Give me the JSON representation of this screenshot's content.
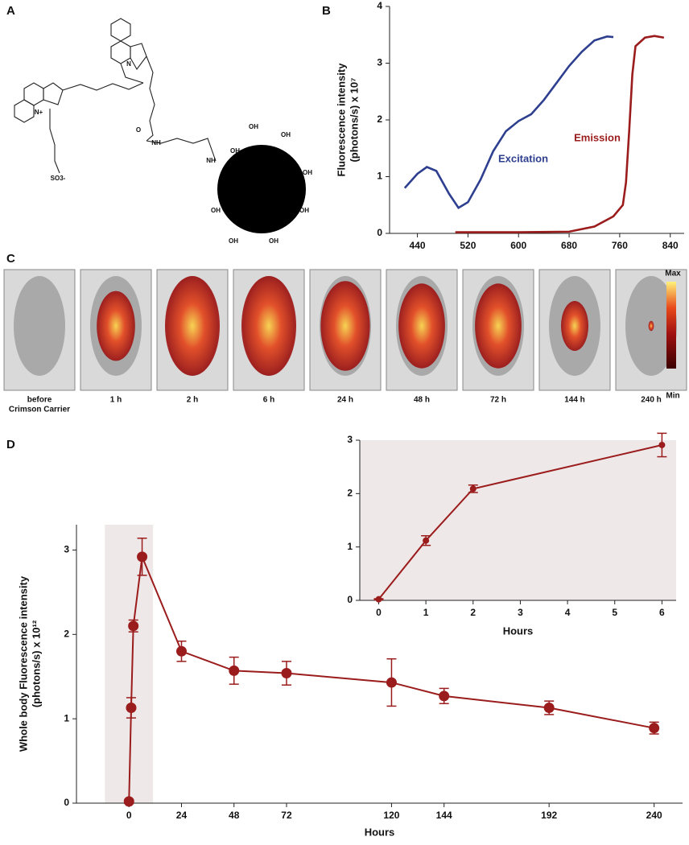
{
  "panel_labels": [
    "A",
    "B",
    "C",
    "D"
  ],
  "structure": {
    "atoms": [
      "N+",
      "N",
      "SO3-",
      "O",
      "NH",
      "NH",
      "OH",
      "OH",
      "OH",
      "OH",
      "OH",
      "OH",
      "OH",
      "OH"
    ]
  },
  "imaging": {
    "labels": [
      [
        "before",
        "Crimson Carrier"
      ],
      [
        "1 h"
      ],
      [
        "2 h"
      ],
      [
        "6 h"
      ],
      [
        "24 h"
      ],
      [
        "48 h"
      ],
      [
        "72 h"
      ],
      [
        "144  h"
      ],
      [
        "240 h"
      ]
    ],
    "colorbar": {
      "max": "Max",
      "min": "Min"
    }
  },
  "chart_data": [
    {
      "type": "line",
      "ylabel": [
        "Fluorescence intensity",
        "(photons/s) x 10⁷"
      ],
      "xlim": [
        396,
        862
      ],
      "ylim": [
        0,
        4
      ],
      "xticks": [
        440,
        520,
        600,
        680,
        760,
        840
      ],
      "yticks": [
        0,
        1,
        2,
        3,
        4
      ],
      "series": [
        {
          "name": "Excitation",
          "color": "#2e3f8f",
          "x": [
            420,
            440,
            455,
            470,
            490,
            505,
            520,
            540,
            560,
            580,
            600,
            620,
            640,
            660,
            680,
            700,
            720,
            740,
            750
          ],
          "values": [
            0.8,
            1.05,
            1.17,
            1.1,
            0.7,
            0.45,
            0.55,
            0.95,
            1.45,
            1.8,
            1.98,
            2.1,
            2.35,
            2.65,
            2.95,
            3.2,
            3.4,
            3.47,
            3.46
          ]
        },
        {
          "name": "Emission",
          "color": "#9b1c1c",
          "x": [
            500,
            600,
            680,
            720,
            750,
            765,
            770,
            775,
            780,
            785,
            800,
            815,
            830
          ],
          "values": [
            0.02,
            0.02,
            0.03,
            0.12,
            0.3,
            0.5,
            0.9,
            1.8,
            2.8,
            3.3,
            3.45,
            3.48,
            3.45
          ]
        }
      ]
    },
    {
      "type": "line",
      "ylabel": [
        "Whole body Fluorescence intensity",
        "(photons/s) x 10¹²"
      ],
      "xlabel": "Hours",
      "xlim": [
        -24,
        253
      ],
      "ylim": [
        0,
        3.3
      ],
      "xticks": [
        0,
        24,
        48,
        72,
        120,
        144,
        192,
        240
      ],
      "yticks": [
        0,
        1,
        2,
        3
      ],
      "shaded_range": [
        -11,
        11
      ],
      "series": [
        {
          "color": "#9b1c1c",
          "x": [
            0,
            1,
            2,
            6,
            24,
            48,
            72,
            120,
            144,
            192,
            240
          ],
          "values": [
            0.02,
            1.13,
            2.1,
            2.92,
            1.8,
            1.57,
            1.54,
            1.43,
            1.27,
            1.13,
            0.89
          ],
          "errors": [
            0.02,
            0.12,
            0.07,
            0.22,
            0.12,
            0.16,
            0.14,
            0.28,
            0.09,
            0.08,
            0.07
          ]
        }
      ]
    },
    {
      "type": "line",
      "xlabel": "Hours",
      "xlim": [
        -0.4,
        6.3
      ],
      "ylim": [
        0,
        3
      ],
      "xticks": [
        0,
        1,
        2,
        3,
        4,
        5,
        6
      ],
      "yticks": [
        0,
        1,
        2,
        3
      ],
      "shaded_range": [
        -0.4,
        6.3
      ],
      "series": [
        {
          "color": "#9b1c1c",
          "x": [
            0,
            1,
            2,
            6
          ],
          "values": [
            0.02,
            1.12,
            2.09,
            2.91
          ],
          "errors": [
            0.01,
            0.09,
            0.07,
            0.22
          ]
        }
      ]
    }
  ]
}
